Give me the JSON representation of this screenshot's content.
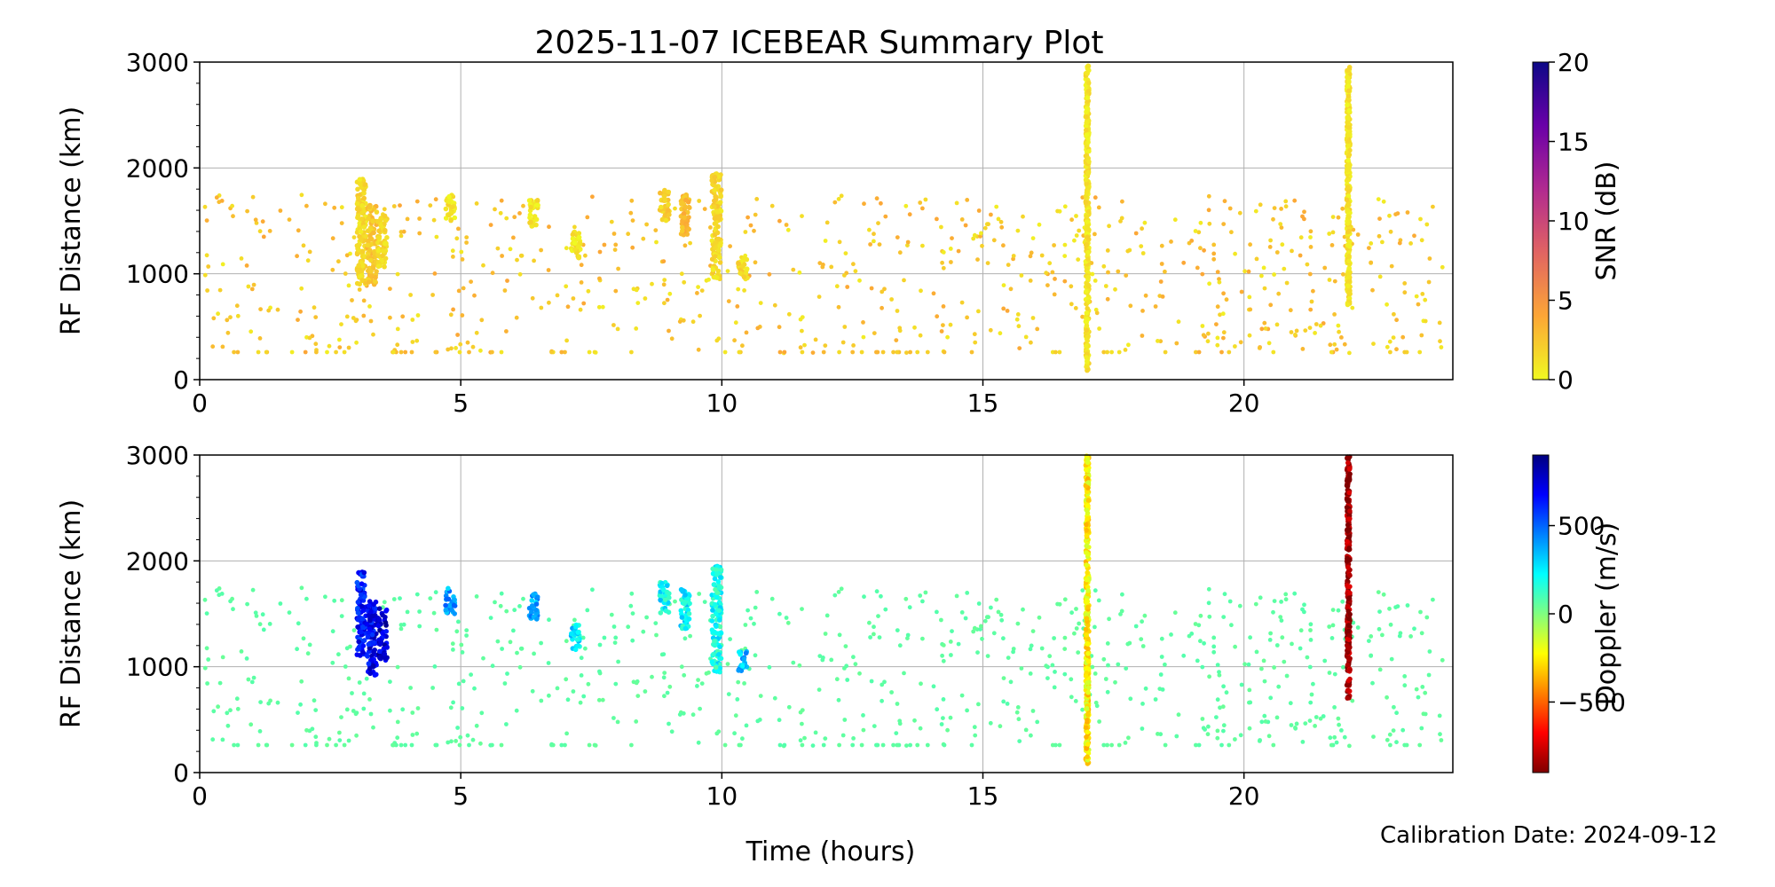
{
  "title": "2025-11-07 ICEBEAR Summary Plot",
  "calibration_note": "Calibration Date: 2024-09-12",
  "chart_data": [
    {
      "type": "scatter",
      "panel": "snr",
      "ylabel": "RF Distance (km)",
      "xlabel": "",
      "xlim": [
        0,
        24
      ],
      "ylim": [
        0,
        3000
      ],
      "x_ticks": [
        0,
        5,
        10,
        15,
        20
      ],
      "y_ticks": [
        0,
        1000,
        2000,
        3000
      ],
      "grid": true,
      "colorbar": {
        "label": "SNR (dB)",
        "range": [
          0,
          20
        ],
        "ticks": [
          0,
          5,
          10,
          15,
          20
        ],
        "colormap": "plasma_r",
        "colors": [
          "#f0f921",
          "#fca636",
          "#e16462",
          "#b12a90",
          "#6a00a8",
          "#0d0887"
        ]
      },
      "clusters": [
        {
          "x": 3.1,
          "y_min": 900,
          "y_max": 1900,
          "value": 1.5
        },
        {
          "x": 3.3,
          "y_min": 900,
          "y_max": 1650,
          "value": 2.5
        },
        {
          "x": 3.5,
          "y_min": 1050,
          "y_max": 1550,
          "value": 1.5
        },
        {
          "x": 4.8,
          "y_min": 1500,
          "y_max": 1750,
          "value": 1
        },
        {
          "x": 6.4,
          "y_min": 1450,
          "y_max": 1700,
          "value": 1
        },
        {
          "x": 7.2,
          "y_min": 1150,
          "y_max": 1400,
          "value": 1
        },
        {
          "x": 8.9,
          "y_min": 1500,
          "y_max": 1800,
          "value": 2
        },
        {
          "x": 9.3,
          "y_min": 1350,
          "y_max": 1750,
          "value": 3
        },
        {
          "x": 9.9,
          "y_min": 950,
          "y_max": 1950,
          "value": 1.5
        },
        {
          "x": 10.4,
          "y_min": 950,
          "y_max": 1150,
          "value": 1.5
        },
        {
          "x": 17.0,
          "y_min": 80,
          "y_max": 3000,
          "value": 1
        },
        {
          "x": 22.0,
          "y_min": 680,
          "y_max": 3000,
          "value": 1
        }
      ]
    },
    {
      "type": "scatter",
      "panel": "doppler",
      "ylabel": "RF Distance (km)",
      "xlabel": "Time (hours)",
      "xlim": [
        0,
        24
      ],
      "ylim": [
        0,
        3000
      ],
      "x_ticks": [
        0,
        5,
        10,
        15,
        20
      ],
      "y_ticks": [
        0,
        1000,
        2000,
        3000
      ],
      "grid": true,
      "colorbar": {
        "label": "Doppler (m/s)",
        "range": [
          -900,
          900
        ],
        "ticks": [
          -500,
          0,
          500
        ],
        "tick_labels": [
          "−500",
          "0",
          "500"
        ],
        "colormap": "jet_r",
        "colors": [
          "#800000",
          "#ff0000",
          "#ff8000",
          "#ffff00",
          "#80ff80",
          "#00ffff",
          "#0080ff",
          "#0000ff",
          "#000080"
        ]
      },
      "clusters": [
        {
          "x": 3.1,
          "y_min": 1100,
          "y_max": 1900,
          "value": 650
        },
        {
          "x": 3.3,
          "y_min": 900,
          "y_max": 1650,
          "value": 700
        },
        {
          "x": 3.5,
          "y_min": 1050,
          "y_max": 1550,
          "value": 750
        },
        {
          "x": 4.8,
          "y_min": 1500,
          "y_max": 1750,
          "value": 400
        },
        {
          "x": 6.4,
          "y_min": 1450,
          "y_max": 1700,
          "value": 380
        },
        {
          "x": 7.2,
          "y_min": 1150,
          "y_max": 1400,
          "value": 280
        },
        {
          "x": 8.9,
          "y_min": 1500,
          "y_max": 1800,
          "value": 230
        },
        {
          "x": 9.3,
          "y_min": 1350,
          "y_max": 1750,
          "value": 230
        },
        {
          "x": 9.9,
          "y_min": 950,
          "y_max": 1950,
          "value": 200
        },
        {
          "x": 10.4,
          "y_min": 950,
          "y_max": 1150,
          "value": 350
        },
        {
          "x": 17.0,
          "y_min": 80,
          "y_max": 3000,
          "value": -250
        },
        {
          "x": 22.0,
          "y_min": 680,
          "y_max": 3000,
          "value": -850
        }
      ]
    }
  ]
}
